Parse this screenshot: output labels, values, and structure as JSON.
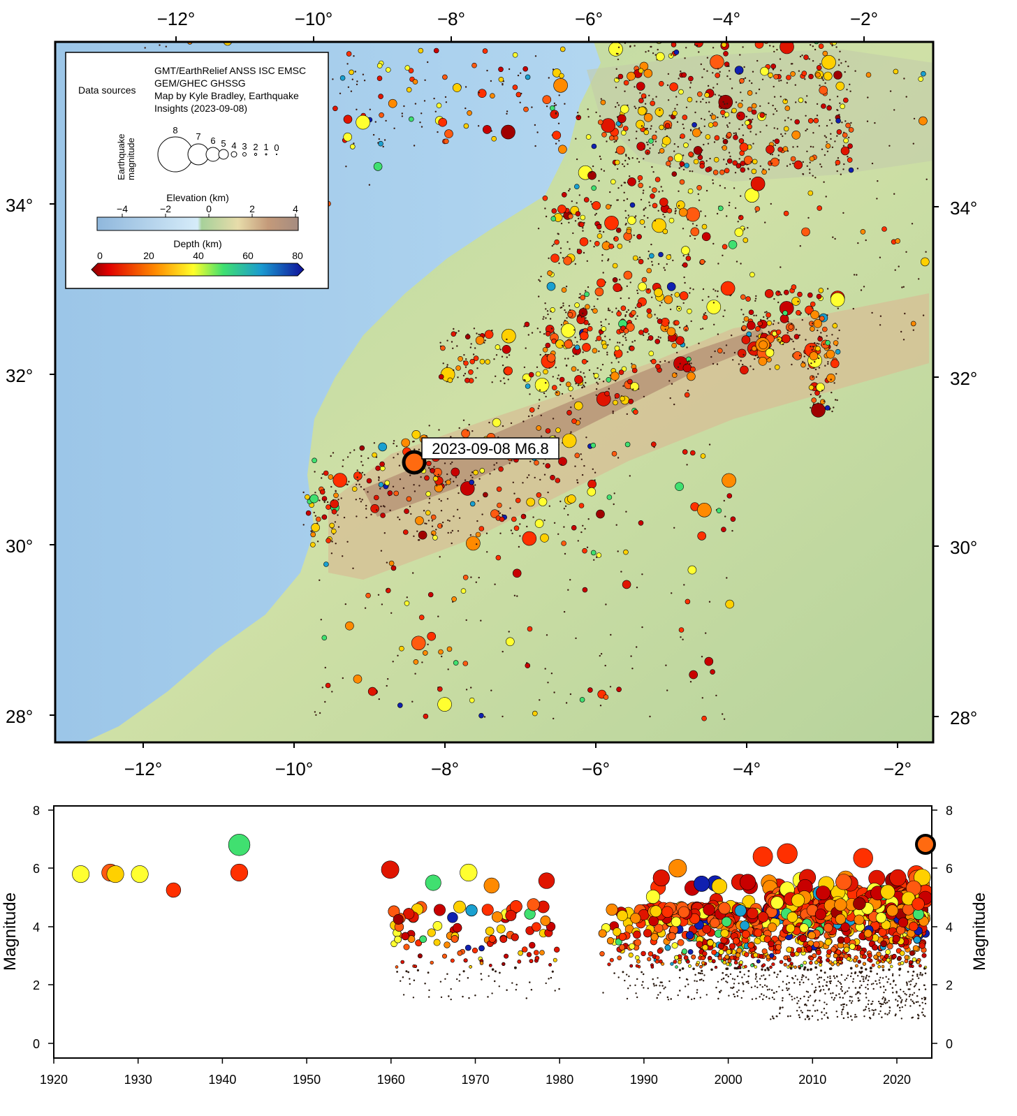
{
  "map": {
    "top_lon_labels": [
      "−12°",
      "−10°",
      "−8°",
      "−6°",
      "−4°",
      "−2°"
    ],
    "bottom_lon_labels": [
      "−12°",
      "−10°",
      "−8°",
      "−6°",
      "−4°",
      "−2°"
    ],
    "left_lat_labels": [
      "34°",
      "32°",
      "30°",
      "28°"
    ],
    "right_lat_labels": [
      "34°",
      "32°",
      "30°",
      "28°"
    ],
    "event_label": "2023-09-08 M6.8",
    "colors": {
      "ocean": "#a9d2ee",
      "land_low": "#a8cf9b",
      "land_high": "#c9a47f",
      "frame": "#000000"
    }
  },
  "legend": {
    "data_sources_label": "Data sources",
    "credit_lines": [
      "GMT/EarthRelief ANSS ISC EMSC",
      "GEM/GHEC GHSSG",
      "Map by Kyle Bradley, Earthquake",
      "Insights (2023-09-08)"
    ],
    "magnitude_title_1": "Earthquake",
    "magnitude_title_2": "magnitude",
    "magnitude_values": [
      "8",
      "7",
      "6",
      "5",
      "4",
      "3",
      "2",
      "1",
      "0"
    ],
    "elevation_title": "Elevation (km)",
    "elevation_ticks": [
      "−4",
      "−2",
      "0",
      "2",
      "4"
    ],
    "depth_title": "Depth (km)",
    "depth_ticks": [
      "0",
      "20",
      "40",
      "60",
      "80"
    ]
  },
  "timeline": {
    "ylabel_left": "Magnitude",
    "ylabel_right": "Magnitude",
    "y_ticks": [
      "0",
      "2",
      "4",
      "6",
      "8"
    ],
    "x_ticks": [
      "1920",
      "1930",
      "1940",
      "1950",
      "1960",
      "1970",
      "1980",
      "1990",
      "2000",
      "2010",
      "2020"
    ]
  }
}
